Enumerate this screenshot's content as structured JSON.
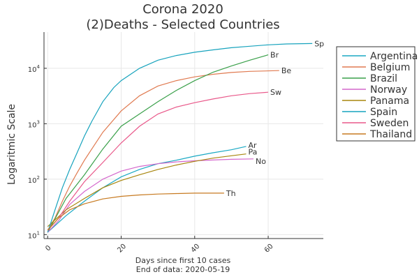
{
  "chart_data": {
    "type": "line",
    "title_lines": [
      "Corona 2020",
      "(2)Deaths - Selected Countries"
    ],
    "xlabel_lines": [
      "Days since first 10 cases",
      "End of data: 2020-05-19"
    ],
    "ylabel": "Logaritmic Scale",
    "y_scale": "log",
    "xlim": [
      -1,
      75
    ],
    "ylim": [
      8.5,
      45000
    ],
    "x_ticks": [
      0,
      20,
      40,
      60
    ],
    "y_ticks": [
      {
        "value": 10,
        "base": "10",
        "exp": "1"
      },
      {
        "value": 100,
        "base": "10",
        "exp": "2"
      },
      {
        "value": 1000,
        "base": "10",
        "exp": "3"
      },
      {
        "value": 10000,
        "base": "10",
        "exp": "4"
      }
    ],
    "grid": true,
    "legend_position": "right",
    "series": [
      {
        "name": "Argentina",
        "end_label": "Ar",
        "color": "#1aa9c4",
        "x": [
          0,
          5,
          10,
          15,
          20,
          25,
          30,
          35,
          40,
          45,
          50,
          54
        ],
        "y": [
          11,
          22,
          40,
          70,
          110,
          150,
          190,
          220,
          260,
          300,
          340,
          390
        ]
      },
      {
        "name": "Belgium",
        "end_label": "Be",
        "color": "#e07a50",
        "x": [
          0,
          2,
          4,
          6,
          8,
          10,
          12,
          15,
          20,
          25,
          30,
          35,
          40,
          45,
          50,
          55,
          63
        ],
        "y": [
          12,
          20,
          40,
          75,
          130,
          220,
          350,
          700,
          1700,
          3200,
          4800,
          6000,
          7000,
          7800,
          8400,
          8800,
          9100
        ]
      },
      {
        "name": "Brazil",
        "end_label": "Br",
        "color": "#3aa04a",
        "x": [
          0,
          5,
          10,
          15,
          20,
          25,
          30,
          35,
          40,
          45,
          50,
          55,
          60
        ],
        "y": [
          11,
          45,
          120,
          350,
          900,
          1500,
          2500,
          4000,
          6000,
          8500,
          11000,
          14000,
          17500
        ]
      },
      {
        "name": "Norway",
        "end_label": "No",
        "color": "#d466cc",
        "x": [
          0,
          3,
          6,
          10,
          15,
          20,
          25,
          30,
          35,
          40,
          45,
          50,
          56
        ],
        "y": [
          11,
          18,
          35,
          60,
          100,
          140,
          170,
          190,
          205,
          215,
          222,
          228,
          232
        ]
      },
      {
        "name": "Panama",
        "end_label": "Pa",
        "color": "#a8860e",
        "x": [
          0,
          5,
          10,
          15,
          20,
          25,
          30,
          35,
          40,
          45,
          50,
          54
        ],
        "y": [
          14,
          28,
          45,
          70,
          95,
          120,
          150,
          180,
          210,
          240,
          265,
          285
        ]
      },
      {
        "name": "Spain",
        "end_label": "Sp",
        "color": "#17a3bd",
        "x": [
          0,
          2,
          4,
          6,
          8,
          10,
          12,
          15,
          18,
          20,
          25,
          30,
          35,
          40,
          45,
          50,
          55,
          60,
          65,
          72
        ],
        "y": [
          11,
          28,
          70,
          150,
          300,
          600,
          1100,
          2500,
          4500,
          6000,
          10000,
          14000,
          17000,
          19500,
          21500,
          23500,
          25000,
          26500,
          27500,
          28000
        ]
      },
      {
        "name": "Sweden",
        "end_label": "Sw",
        "color": "#e9588a",
        "x": [
          0,
          3,
          6,
          10,
          15,
          20,
          25,
          30,
          35,
          40,
          45,
          50,
          55,
          60
        ],
        "y": [
          12,
          20,
          40,
          90,
          200,
          450,
          900,
          1500,
          2000,
          2400,
          2800,
          3200,
          3500,
          3700
        ]
      },
      {
        "name": "Thailand",
        "end_label": "Th",
        "color": "#c77a20",
        "x": [
          0,
          3,
          6,
          10,
          15,
          20,
          25,
          30,
          35,
          40,
          45,
          48
        ],
        "y": [
          12,
          20,
          28,
          36,
          44,
          49,
          52,
          54,
          55,
          56,
          56,
          56
        ]
      }
    ]
  }
}
